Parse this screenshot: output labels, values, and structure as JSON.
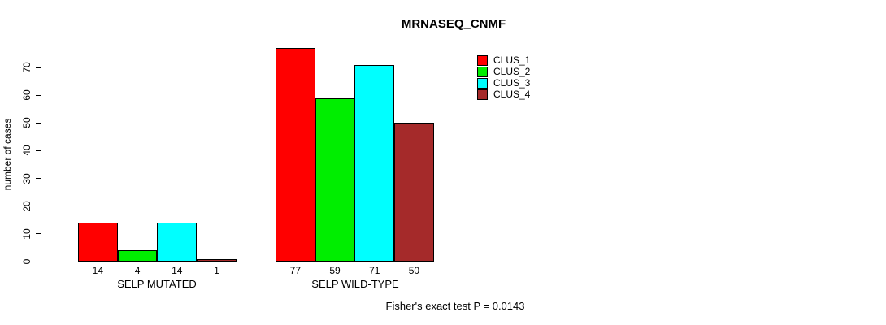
{
  "chart_data": {
    "type": "bar",
    "title": "MRNASEQ_CNMF",
    "xlabel": "",
    "ylabel": "number of cases",
    "ylim": [
      0,
      70
    ],
    "yticks": [
      0,
      10,
      20,
      30,
      40,
      50,
      60,
      70
    ],
    "categories": [
      "SELP MUTATED",
      "SELP WILD-TYPE"
    ],
    "series": [
      {
        "name": "CLUS_1",
        "color": "#ff0000",
        "values": [
          14,
          77
        ]
      },
      {
        "name": "CLUS_2",
        "color": "#00ee00",
        "values": [
          4,
          59
        ]
      },
      {
        "name": "CLUS_3",
        "color": "#00ffff",
        "values": [
          14,
          71
        ]
      },
      {
        "name": "CLUS_4",
        "color": "#a52a2a",
        "values": [
          1,
          50
        ]
      }
    ],
    "bar_value_labels": [
      [
        "14",
        "4",
        "14",
        "1"
      ],
      [
        "77",
        "59",
        "71",
        "50"
      ]
    ],
    "legend_position": "top-right",
    "legend_entries": [
      "CLUS_1",
      "CLUS_2",
      "CLUS_3",
      "CLUS_4"
    ],
    "grid": false,
    "annotation": "Fisher's exact test P = 0.0143"
  }
}
